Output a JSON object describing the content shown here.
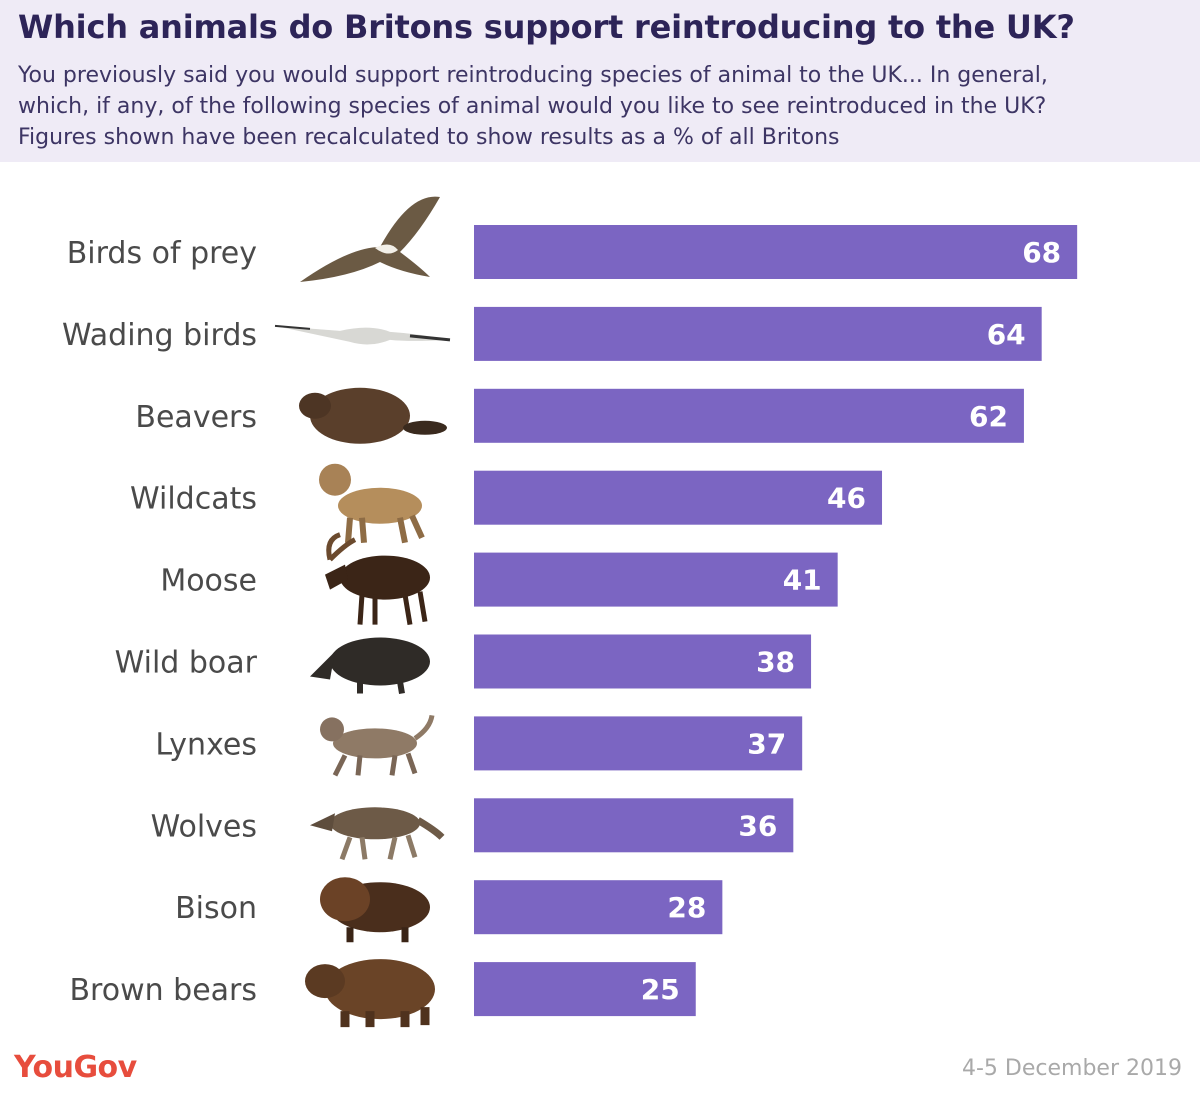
{
  "header": {
    "title": "Which animals do Britons support reintroducing to the UK?",
    "subtitle_lines": [
      "You previously said you would support reintroducing species of animal to the UK... In general,",
      "which, if any, of the following species of animal would you like to see reintroduced in the UK?",
      "Figures shown have been recalculated to show results as a % of all Britons"
    ]
  },
  "colors": {
    "bar": "#7b65c2",
    "header_bg": "#efebf6",
    "title": "#2d2458",
    "brand": "#e74d3d"
  },
  "chart_data": {
    "type": "bar",
    "orientation": "horizontal",
    "title": "Which animals do Britons support reintroducing to the UK?",
    "xlabel": "",
    "ylabel": "",
    "xlim": [
      0,
      100
    ],
    "unit": "% of all Britons",
    "categories": [
      "Birds of prey",
      "Wading birds",
      "Beavers",
      "Wildcats",
      "Moose",
      "Wild boar",
      "Lynxes",
      "Wolves",
      "Bison",
      "Brown bears"
    ],
    "values": [
      68,
      64,
      62,
      46,
      41,
      38,
      37,
      36,
      28,
      25
    ],
    "icons": [
      "bird-of-prey-icon",
      "wading-bird-icon",
      "beaver-icon",
      "wildcat-icon",
      "moose-icon",
      "wild-boar-icon",
      "lynx-icon",
      "wolf-icon",
      "bison-icon",
      "brown-bear-icon"
    ]
  },
  "footer": {
    "brand": "YouGov",
    "date": "4-5 December 2019"
  }
}
